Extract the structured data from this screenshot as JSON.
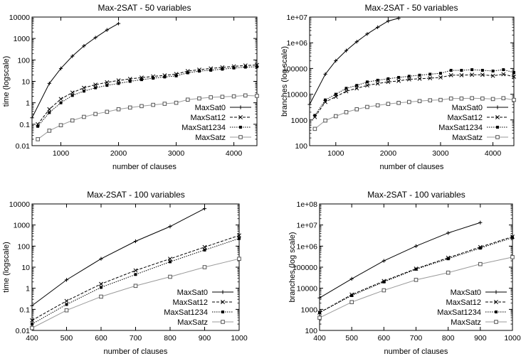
{
  "chart_data": [
    {
      "type": "line",
      "title": "Max-2SAT - 50 variables",
      "xlabel": "number of clauses",
      "ylabel": "time (logscale)",
      "yscale": "log",
      "xlim": [
        500,
        4400
      ],
      "ylim": [
        0.01,
        10000
      ],
      "xticks": [
        1000,
        2000,
        3000,
        4000
      ],
      "xtick_labels": [
        "1000",
        "2000",
        "3000",
        "4000"
      ],
      "yticks": [
        0.01,
        0.1,
        1,
        10,
        100,
        1000,
        10000
      ],
      "ytick_labels": [
        "0.01",
        "0.1",
        "1",
        "10",
        "100",
        "1000",
        "10000"
      ],
      "legend_position": "bottom-right",
      "series": [
        {
          "name": "MaxSat0",
          "marker": "plus",
          "dash": "solid",
          "x": [
            500,
            800,
            1000,
            1200,
            1400,
            1600,
            1800,
            2000
          ],
          "y": [
            0.2,
            8,
            40,
            150,
            450,
            1100,
            2500,
            5000
          ]
        },
        {
          "name": "MaxSat12",
          "marker": "cross",
          "dash": "dashed",
          "x": [
            600,
            800,
            1000,
            1200,
            1400,
            1600,
            1800,
            2000,
            2200,
            2400,
            2600,
            2800,
            3000,
            3200,
            3400,
            3600,
            3800,
            4000,
            4200,
            4400
          ],
          "y": [
            0.1,
            0.5,
            1.5,
            3,
            5,
            7,
            9,
            11,
            13,
            15,
            17,
            19,
            22,
            30,
            35,
            40,
            45,
            50,
            55,
            58
          ]
        },
        {
          "name": "MaxSat1234",
          "marker": "filled-square",
          "dash": "dotted",
          "x": [
            600,
            800,
            1000,
            1200,
            1400,
            1600,
            1800,
            2000,
            2200,
            2400,
            2600,
            2800,
            3000,
            3200,
            3400,
            3600,
            3800,
            4000,
            4200,
            4400
          ],
          "y": [
            0.08,
            0.35,
            1,
            2.2,
            3.5,
            5,
            6.5,
            8,
            10,
            12,
            14,
            16,
            18,
            25,
            30,
            33,
            37,
            42,
            46,
            48
          ]
        },
        {
          "name": "MaxSatz",
          "marker": "open-square",
          "dash": "solid-gray",
          "x": [
            600,
            800,
            1000,
            1200,
            1400,
            1600,
            1800,
            2000,
            2200,
            2400,
            2600,
            2800,
            3000,
            3200,
            3400,
            3600,
            3800,
            4000,
            4200,
            4400
          ],
          "y": [
            0.02,
            0.05,
            0.09,
            0.15,
            0.22,
            0.3,
            0.38,
            0.5,
            0.6,
            0.7,
            0.8,
            0.9,
            1.0,
            1.4,
            1.6,
            1.8,
            1.9,
            2.0,
            2.2,
            2.1
          ]
        }
      ]
    },
    {
      "type": "line",
      "title": "Max-2SAT - 50 variables",
      "xlabel": "number of clauses",
      "ylabel": "branches (log scale)",
      "yscale": "log",
      "xlim": [
        500,
        4400
      ],
      "ylim": [
        100,
        10000000
      ],
      "xticks": [
        1000,
        2000,
        3000,
        4000
      ],
      "xtick_labels": [
        "1000",
        "2000",
        "3000",
        "4000"
      ],
      "yticks": [
        100,
        1000,
        10000,
        100000,
        1000000,
        10000000
      ],
      "ytick_labels": [
        "100",
        "1000",
        "10000",
        "100000",
        "1e+06",
        "1e+07"
      ],
      "legend_position": "bottom-right",
      "series": [
        {
          "name": "MaxSat0",
          "marker": "plus",
          "dash": "solid",
          "x": [
            500,
            800,
            1000,
            1200,
            1400,
            1600,
            1800,
            2000,
            2200
          ],
          "y": [
            4000,
            60000,
            200000,
            500000,
            1100000,
            2200000,
            4000000,
            7000000,
            9000000
          ]
        },
        {
          "name": "MaxSat12",
          "marker": "cross",
          "dash": "dashed",
          "x": [
            600,
            800,
            1000,
            1200,
            1400,
            1600,
            1800,
            2000,
            2200,
            2400,
            2600,
            2800,
            3000,
            3200,
            3400,
            3600,
            3800,
            4000,
            4200,
            4400
          ],
          "y": [
            1300,
            5000,
            8000,
            13000,
            17000,
            22000,
            26000,
            30000,
            33000,
            38000,
            40000,
            42000,
            45000,
            55000,
            55000,
            57000,
            57000,
            52000,
            60000,
            48000
          ]
        },
        {
          "name": "MaxSat1234",
          "marker": "filled-square",
          "dash": "dotted",
          "x": [
            600,
            800,
            1000,
            1200,
            1400,
            1600,
            1800,
            2000,
            2200,
            2400,
            2600,
            2800,
            3000,
            3200,
            3400,
            3600,
            3800,
            4000,
            4200,
            4400
          ],
          "y": [
            1500,
            6000,
            10000,
            17000,
            22000,
            30000,
            35000,
            40000,
            45000,
            50000,
            55000,
            60000,
            65000,
            85000,
            85000,
            90000,
            85000,
            80000,
            90000,
            70000
          ]
        },
        {
          "name": "MaxSatz",
          "marker": "open-square",
          "dash": "solid-gray",
          "x": [
            600,
            800,
            1000,
            1200,
            1400,
            1600,
            1800,
            2000,
            2200,
            2400,
            2600,
            2800,
            3000,
            3200,
            3400,
            3600,
            3800,
            4000,
            4200,
            4400
          ],
          "y": [
            450,
            950,
            1400,
            2000,
            2600,
            3200,
            3700,
            4200,
            4600,
            5000,
            5400,
            5800,
            6000,
            6800,
            6800,
            7000,
            6800,
            6500,
            7000,
            6000
          ]
        }
      ]
    },
    {
      "type": "line",
      "title": "Max-2SAT - 100 variables",
      "xlabel": "number of clauses",
      "ylabel": "time (logscale)",
      "yscale": "log",
      "xlim": [
        400,
        1000
      ],
      "ylim": [
        0.01,
        10000
      ],
      "xticks": [
        400,
        500,
        600,
        700,
        800,
        900,
        1000
      ],
      "xtick_labels": [
        "400",
        "500",
        "600",
        "700",
        "800",
        "900",
        "1000"
      ],
      "yticks": [
        0.01,
        0.1,
        1,
        10,
        100,
        1000,
        10000
      ],
      "ytick_labels": [
        "0.01",
        "0.1",
        "1",
        "10",
        "100",
        "1000",
        "10000"
      ],
      "legend_position": "bottom-right",
      "series": [
        {
          "name": "MaxSat0",
          "marker": "plus",
          "dash": "solid",
          "x": [
            400,
            500,
            600,
            700,
            800,
            900
          ],
          "y": [
            0.15,
            2.5,
            25,
            170,
            850,
            6000
          ]
        },
        {
          "name": "MaxSat12",
          "marker": "cross",
          "dash": "dashed",
          "x": [
            400,
            500,
            600,
            700,
            800,
            900,
            1000
          ],
          "y": [
            0.03,
            0.25,
            1.6,
            7,
            25,
            90,
            320
          ]
        },
        {
          "name": "MaxSat1234",
          "marker": "filled-square",
          "dash": "dotted",
          "x": [
            400,
            500,
            600,
            700,
            800,
            900,
            1000
          ],
          "y": [
            0.02,
            0.17,
            1.1,
            4.5,
            18,
            65,
            230
          ]
        },
        {
          "name": "MaxSatz",
          "marker": "open-square",
          "dash": "solid-gray",
          "x": [
            400,
            500,
            600,
            700,
            800,
            900,
            1000
          ],
          "y": [
            0.013,
            0.09,
            0.4,
            1.3,
            3.5,
            10,
            25
          ]
        }
      ]
    },
    {
      "type": "line",
      "title": "Max-2SAT - 100 variables",
      "xlabel": "number of clauses",
      "ylabel": "branches (log scale)",
      "yscale": "log",
      "xlim": [
        400,
        1000
      ],
      "ylim": [
        100,
        100000000
      ],
      "xticks": [
        400,
        500,
        600,
        700,
        800,
        900,
        1000
      ],
      "xtick_labels": [
        "400",
        "500",
        "600",
        "700",
        "800",
        "900",
        "1000"
      ],
      "yticks": [
        100,
        1000,
        10000,
        100000,
        1000000,
        10000000,
        100000000
      ],
      "ytick_labels": [
        "100",
        "1000",
        "10000",
        "100000",
        "1e+06",
        "1e+07",
        "1e+08"
      ],
      "legend_position": "bottom-right",
      "series": [
        {
          "name": "MaxSat0",
          "marker": "plus",
          "dash": "solid",
          "x": [
            400,
            500,
            600,
            700,
            800,
            900
          ],
          "y": [
            3500,
            28000,
            200000,
            1000000,
            4200000,
            13000000
          ]
        },
        {
          "name": "MaxSat12",
          "marker": "cross",
          "dash": "dashed",
          "x": [
            400,
            500,
            600,
            700,
            800,
            900,
            1000
          ],
          "y": [
            700,
            5000,
            22000,
            85000,
            280000,
            900000,
            2800000
          ]
        },
        {
          "name": "MaxSat1234",
          "marker": "filled-square",
          "dash": "dotted",
          "x": [
            400,
            500,
            600,
            700,
            800,
            900,
            1000
          ],
          "y": [
            700,
            4500,
            20000,
            80000,
            250000,
            800000,
            2500000
          ]
        },
        {
          "name": "MaxSatz",
          "marker": "open-square",
          "dash": "solid-gray",
          "x": [
            400,
            500,
            600,
            700,
            800,
            900,
            1000
          ],
          "y": [
            400,
            2200,
            8000,
            25000,
            55000,
            140000,
            300000
          ]
        }
      ]
    }
  ]
}
